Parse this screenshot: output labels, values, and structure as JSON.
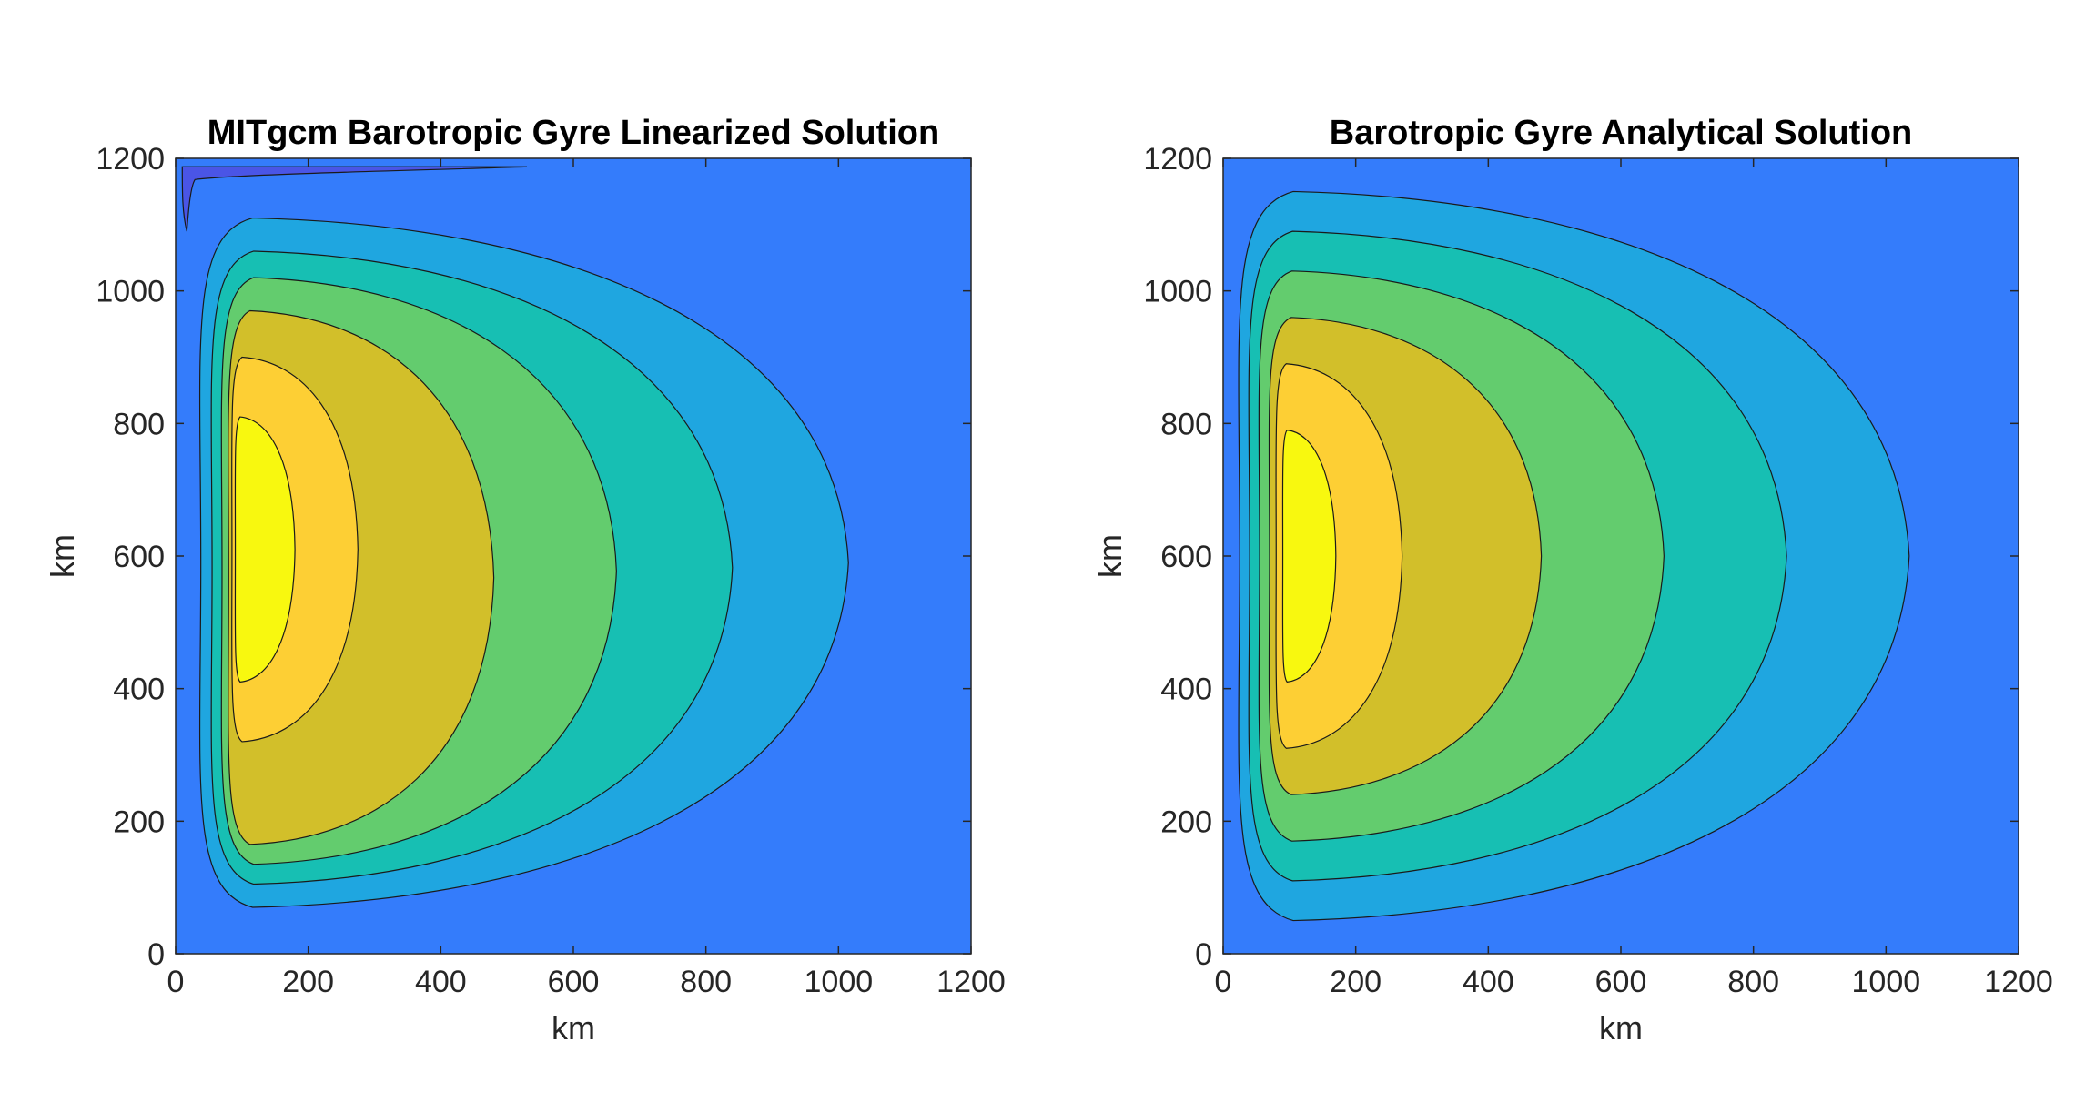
{
  "figure": {
    "colors": {
      "background": "#ffffff",
      "axis": "#262626",
      "contour_line": "#1a1a1a"
    }
  },
  "chart_data": [
    {
      "type": "contour",
      "title": "MITgcm Barotropic Gyre Linearized Solution",
      "xlabel": "km",
      "ylabel": "km",
      "xlim": [
        0,
        1200
      ],
      "ylim": [
        0,
        1200
      ],
      "xticks": [
        "0",
        "200",
        "400",
        "600",
        "800",
        "1000",
        "1200"
      ],
      "yticks": [
        "0",
        "200",
        "400",
        "600",
        "800",
        "1000",
        "1200"
      ],
      "grid": false,
      "background_color": "#347cfb",
      "anomaly": {
        "color": "#4a55e6",
        "x": [
          10,
          530
        ],
        "y": [
          1090,
          1190
        ]
      },
      "levels": [
        {
          "color": "#1fa6e0",
          "x_west": 38,
          "x_east": 1015,
          "y_south": 70,
          "y_north": 1110
        },
        {
          "color": "#17bfb3",
          "x_west": 55,
          "x_east": 840,
          "y_south": 105,
          "y_north": 1060
        },
        {
          "color": "#63cc6e",
          "x_west": 70,
          "x_east": 665,
          "y_south": 135,
          "y_north": 1020
        },
        {
          "color": "#d2bf2a",
          "x_west": 80,
          "x_east": 480,
          "y_south": 165,
          "y_north": 970
        },
        {
          "color": "#fdcf34",
          "x_west": 85,
          "x_east": 275,
          "y_south": 320,
          "y_north": 900
        },
        {
          "color": "#f8f80f",
          "x_west": 90,
          "x_east": 180,
          "y_south": 410,
          "y_north": 810
        }
      ]
    },
    {
      "type": "contour",
      "title": "Barotropic Gyre Analytical Solution",
      "xlabel": "km",
      "ylabel": "km",
      "xlim": [
        0,
        1200
      ],
      "ylim": [
        0,
        1200
      ],
      "xticks": [
        "0",
        "200",
        "400",
        "600",
        "800",
        "1000",
        "1200"
      ],
      "yticks": [
        "0",
        "200",
        "400",
        "600",
        "800",
        "1000",
        "1200"
      ],
      "grid": false,
      "background_color": "#347cfb",
      "levels": [
        {
          "color": "#1fa6e0",
          "x_west": 25,
          "x_east": 1035,
          "y_south": 50,
          "y_north": 1150
        },
        {
          "color": "#17bfb3",
          "x_west": 40,
          "x_east": 850,
          "y_south": 110,
          "y_north": 1090
        },
        {
          "color": "#63cc6e",
          "x_west": 55,
          "x_east": 665,
          "y_south": 170,
          "y_north": 1030
        },
        {
          "color": "#d2bf2a",
          "x_west": 70,
          "x_east": 480,
          "y_south": 240,
          "y_north": 960
        },
        {
          "color": "#fdcf34",
          "x_west": 80,
          "x_east": 270,
          "y_south": 310,
          "y_north": 890
        },
        {
          "color": "#f8f80f",
          "x_west": 90,
          "x_east": 170,
          "y_south": 410,
          "y_north": 790
        }
      ]
    }
  ]
}
